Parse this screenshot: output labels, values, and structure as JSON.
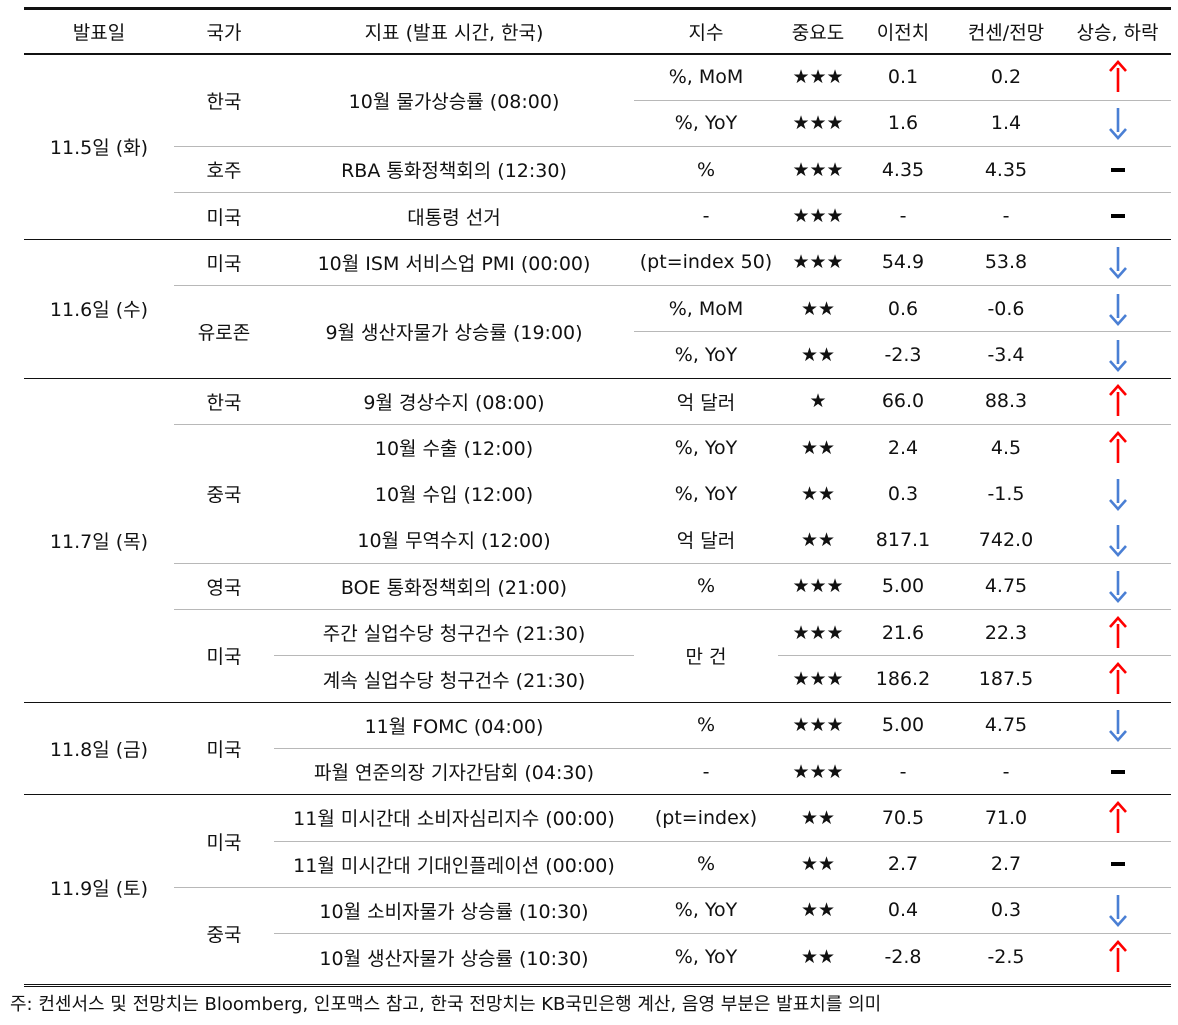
{
  "headers": {
    "date": "발표일",
    "country": "국가",
    "indicator": "지표 (발표 시간, 한국)",
    "unit": "지수",
    "importance": "중요도",
    "previous": "이전치",
    "consensus": "컨센/전망",
    "direction": "상승, 하락"
  },
  "colors": {
    "up": "#ff0000",
    "down": "#4a7fd4",
    "flat": "#000000"
  },
  "rows": [
    {
      "date": "11.5일 (화)",
      "country": "한국",
      "indicator": "10월 물가상승률 (08:00)",
      "unit": "%, MoM",
      "stars": "★★★",
      "prev": "0.1",
      "cons": "0.2",
      "dir": "up-arrow-icon"
    },
    {
      "unit": "%, YoY",
      "stars": "★★★",
      "prev": "1.6",
      "cons": "1.4",
      "dir": "down-arrow-icon"
    },
    {
      "country": "호주",
      "indicator": "RBA 통화정책회의 (12:30)",
      "unit": "%",
      "stars": "★★★",
      "prev": "4.35",
      "cons": "4.35",
      "dir": "flat-dash-icon"
    },
    {
      "country": "미국",
      "indicator": "대통령 선거",
      "unit": "-",
      "stars": "★★★",
      "prev": "-",
      "cons": "-",
      "dir": "flat-dash-icon"
    },
    {
      "date": "11.6일 (수)",
      "country": "미국",
      "indicator": "10월 ISM 서비스업 PMI (00:00)",
      "unit": "(pt=index 50)",
      "stars": "★★★",
      "prev": "54.9",
      "cons": "53.8",
      "dir": "down-arrow-icon"
    },
    {
      "country": "유로존",
      "indicator": "9월 생산자물가 상승률 (19:00)",
      "unit": "%, MoM",
      "stars": "★★",
      "prev": "0.6",
      "cons": "-0.6",
      "dir": "down-arrow-icon"
    },
    {
      "unit": "%, YoY",
      "stars": "★★",
      "prev": "-2.3",
      "cons": "-3.4",
      "dir": "down-arrow-icon"
    },
    {
      "date": "11.7일 (목)",
      "country": "한국",
      "indicator": "9월 경상수지 (08:00)",
      "unit": "억 달러",
      "stars": "★",
      "prev": "66.0",
      "cons": "88.3",
      "dir": "up-arrow-icon"
    },
    {
      "country": "중국",
      "indicator": "10월 수출 (12:00)",
      "unit": "%, YoY",
      "stars": "★★",
      "prev": "2.4",
      "cons": "4.5",
      "dir": "up-arrow-icon"
    },
    {
      "indicator": "10월 수입 (12:00)",
      "unit": "%, YoY",
      "stars": "★★",
      "prev": "0.3",
      "cons": "-1.5",
      "dir": "down-arrow-icon"
    },
    {
      "indicator": "10월 무역수지 (12:00)",
      "unit": "억 달러",
      "stars": "★★",
      "prev": "817.1",
      "cons": "742.0",
      "dir": "down-arrow-icon"
    },
    {
      "country": "영국",
      "indicator": "BOE 통화정책회의 (21:00)",
      "unit": "%",
      "stars": "★★★",
      "prev": "5.00",
      "cons": "4.75",
      "dir": "down-arrow-icon"
    },
    {
      "country": "미국",
      "indicator": "주간 실업수당 청구건수 (21:30)",
      "unit": "만 건",
      "stars": "★★★",
      "prev": "21.6",
      "cons": "22.3",
      "dir": "up-arrow-icon"
    },
    {
      "indicator": "계속 실업수당 청구건수 (21:30)",
      "stars": "★★★",
      "prev": "186.2",
      "cons": "187.5",
      "dir": "up-arrow-icon"
    },
    {
      "date": "11.8일 (금)",
      "country": "미국",
      "indicator": "11월 FOMC (04:00)",
      "unit": "%",
      "stars": "★★★",
      "prev": "5.00",
      "cons": "4.75",
      "dir": "down-arrow-icon"
    },
    {
      "indicator": "파월 연준의장 기자간담회 (04:30)",
      "unit": "-",
      "stars": "★★★",
      "prev": "-",
      "cons": "-",
      "dir": "flat-dash-icon"
    },
    {
      "date": "11.9일 (토)",
      "country": "미국",
      "indicator": "11월 미시간대 소비자심리지수 (00:00)",
      "unit": "(pt=index)",
      "stars": "★★",
      "prev": "70.5",
      "cons": "71.0",
      "dir": "up-arrow-icon"
    },
    {
      "indicator": "11월 미시간대 기대인플레이션 (00:00)",
      "unit": "%",
      "stars": "★★",
      "prev": "2.7",
      "cons": "2.7",
      "dir": "flat-dash-icon"
    },
    {
      "country": "중국",
      "indicator": "10월 소비자물가 상승률 (10:30)",
      "unit": "%, YoY",
      "stars": "★★",
      "prev": "0.4",
      "cons": "0.3",
      "dir": "down-arrow-icon"
    },
    {
      "indicator": "10월 생산자물가 상승률 (10:30)",
      "unit": "%, YoY",
      "stars": "★★",
      "prev": "-2.8",
      "cons": "-2.5",
      "dir": "up-arrow-icon"
    }
  ],
  "note": "주: 컨센서스 및 전망치는 Bloomberg, 인포맥스 참고, 한국 전망치는 KB국민은행 계산, 음영 부분은 발표치를 의미"
}
